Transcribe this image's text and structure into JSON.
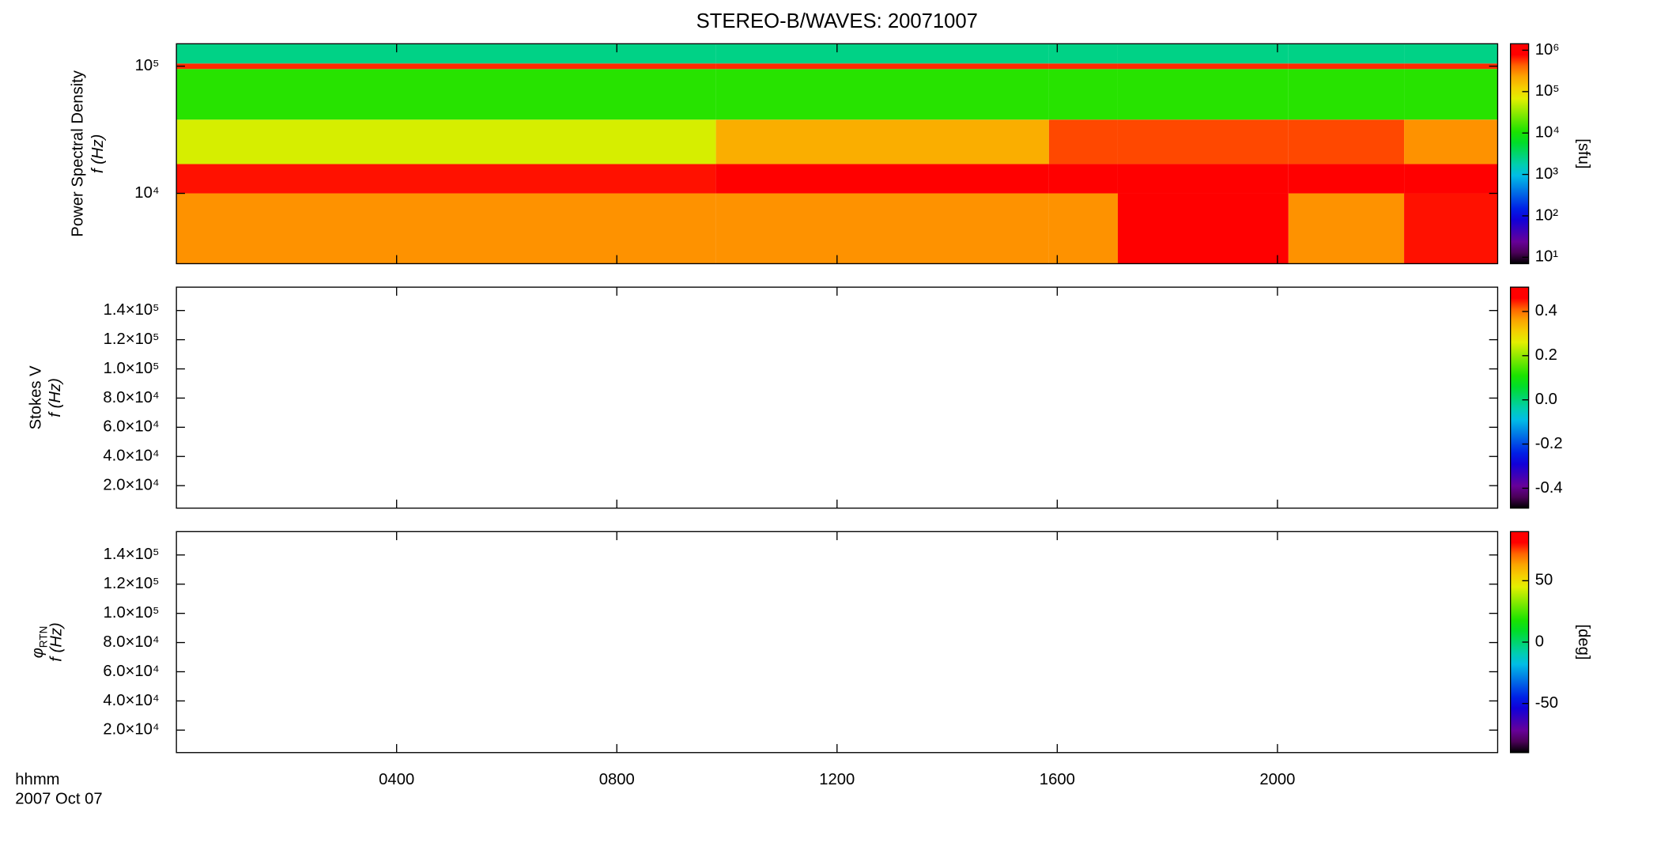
{
  "chart_data": [
    {
      "type": "heatmap",
      "title": "STEREO-B/WAVES: 20071007",
      "ylabel": [
        "Power Spectral Density",
        "f (Hz)"
      ],
      "yscale": "log",
      "ylim": [
        2800,
        150000
      ],
      "yticks": [
        {
          "value": 100000,
          "label": "10⁵"
        },
        {
          "value": 10000,
          "label": "10⁴"
        }
      ],
      "x_edges": [
        0,
        9.8,
        15.85,
        17.1,
        20.2,
        22.3,
        24
      ],
      "y_edges": [
        2800,
        10000,
        17000,
        38000,
        95000,
        105000,
        150000
      ],
      "z": [
        [
          300000,
          300000,
          300000,
          1000000,
          300000,
          700000
        ],
        [
          700000,
          1000000,
          1000000,
          1000000,
          1000000,
          1000000
        ],
        [
          60000,
          200000,
          500000,
          500000,
          500000,
          300000
        ],
        [
          12000,
          12000,
          12000,
          12000,
          12000,
          12000
        ],
        [
          600000,
          600000,
          600000,
          600000,
          600000,
          600000
        ],
        [
          2500,
          2500,
          2500,
          2500,
          2500,
          2500
        ]
      ],
      "colorbar": {
        "scale": "log",
        "clim": [
          7,
          1430000
        ],
        "label": "[sfu]",
        "ticks": [
          {
            "value": 1000000,
            "label": "10⁶"
          },
          {
            "value": 100000,
            "label": "10⁵"
          },
          {
            "value": 10000,
            "label": "10⁴"
          },
          {
            "value": 1000,
            "label": "10³"
          },
          {
            "value": 100,
            "label": "10²"
          },
          {
            "value": 10,
            "label": "10¹"
          }
        ]
      }
    },
    {
      "type": "heatmap",
      "ylabel": [
        "Stokes V",
        "f (Hz)"
      ],
      "yscale": "linear",
      "ylim": [
        4600,
        156000
      ],
      "yticks": [
        {
          "value": 140000,
          "label": "1.4×10⁵"
        },
        {
          "value": 120000,
          "label": "1.2×10⁵"
        },
        {
          "value": 100000,
          "label": "1.0×10⁵"
        },
        {
          "value": 80000,
          "label": "8.0×10⁴"
        },
        {
          "value": 60000,
          "label": "6.0×10⁴"
        },
        {
          "value": 40000,
          "label": "4.0×10⁴"
        },
        {
          "value": 20000,
          "label": "2.0×10⁴"
        }
      ],
      "colorbar": {
        "scale": "linear",
        "clim": [
          -0.49,
          0.51
        ],
        "ticks": [
          0.4,
          0.2,
          {
            "value": 0,
            "label": "0.0"
          },
          -0.2,
          -0.4
        ]
      }
    },
    {
      "type": "heatmap",
      "ylabel_symbol": "φ",
      "ylabel_subscript": "RTN",
      "ylabel_unit": "f (Hz)",
      "yscale": "linear",
      "ylim": [
        4600,
        156000
      ],
      "yticks": [
        {
          "value": 140000,
          "label": "1.4×10⁵"
        },
        {
          "value": 120000,
          "label": "1.2×10⁵"
        },
        {
          "value": 100000,
          "label": "1.0×10⁵"
        },
        {
          "value": 80000,
          "label": "8.0×10⁴"
        },
        {
          "value": 60000,
          "label": "6.0×10⁴"
        },
        {
          "value": 40000,
          "label": "4.0×10⁴"
        },
        {
          "value": 20000,
          "label": "2.0×10⁴"
        }
      ],
      "colorbar": {
        "scale": "linear",
        "clim": [
          -90,
          90
        ],
        "label": "[deg]",
        "ticks": [
          50,
          0,
          -50
        ]
      },
      "xlim": [
        0,
        24
      ],
      "xticks": [
        {
          "value": 4,
          "label": "0400"
        },
        {
          "value": 8,
          "label": "0800"
        },
        {
          "value": 12,
          "label": "1200"
        },
        {
          "value": 16,
          "label": "1600"
        },
        {
          "value": 20,
          "label": "2000"
        }
      ],
      "xlabel": [
        "hhmm",
        "2007 Oct 07"
      ]
    }
  ]
}
